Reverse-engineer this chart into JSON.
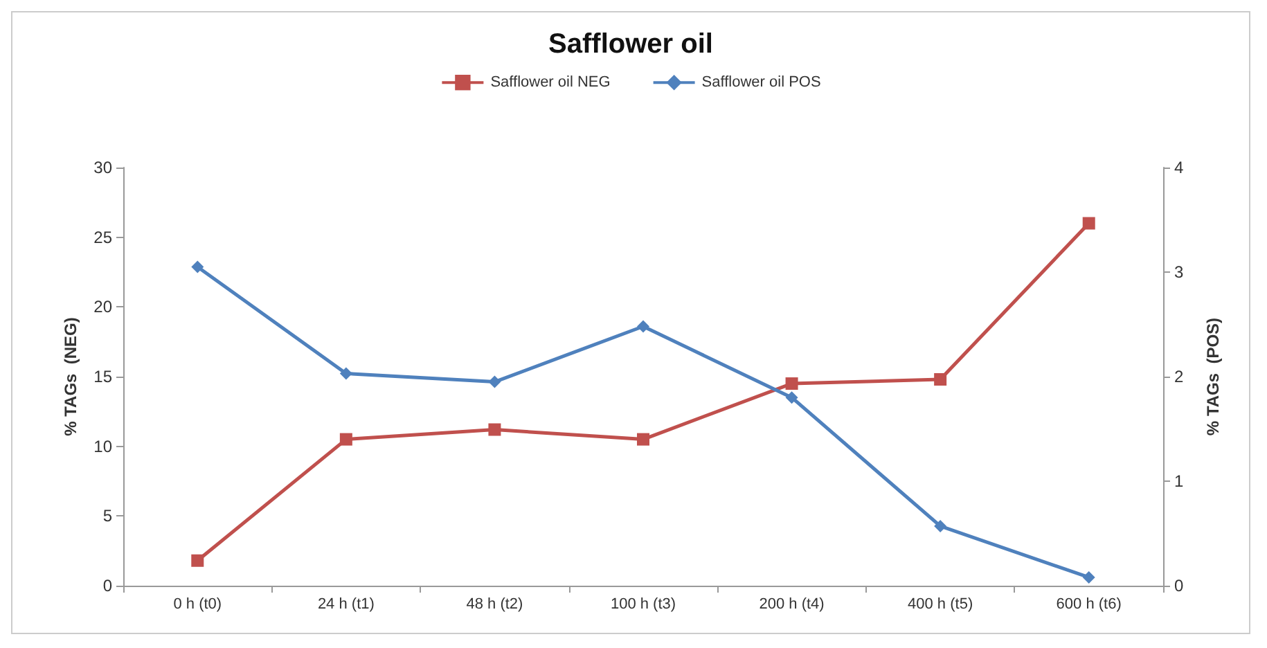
{
  "chart_data": {
    "type": "line",
    "title": "Safflower oil",
    "ylabel": "% TAGs  (NEG)",
    "y2label": "% TAGs  (POS)",
    "categories": [
      "0 h (t0)",
      "24 h (t1)",
      "48 h (t2)",
      "100 h (t3)",
      "200 h (t4)",
      "400 h (t5)",
      "600 h (t6)"
    ],
    "series": [
      {
        "name": "Safflower oil NEG",
        "color": "#c0504d",
        "marker": "square",
        "values": [
          1.8,
          10.5,
          11.2,
          10.5,
          14.5,
          14.8,
          26
        ]
      },
      {
        "name": "Safflower oil POS",
        "color": "#4f81bd",
        "marker": "diamond",
        "axis": "y2",
        "values": [
          3.05,
          2.03,
          1.95,
          2.48,
          1.8,
          0.57,
          0.08
        ]
      }
    ],
    "ylim": [
      0,
      30
    ],
    "yticks": [
      0,
      5,
      10,
      15,
      20,
      25,
      30
    ],
    "y2lim": [
      0,
      4
    ],
    "y2ticks": [
      0,
      1,
      2,
      3,
      4
    ],
    "grid": false,
    "legend": "top",
    "line_style": "solid"
  }
}
